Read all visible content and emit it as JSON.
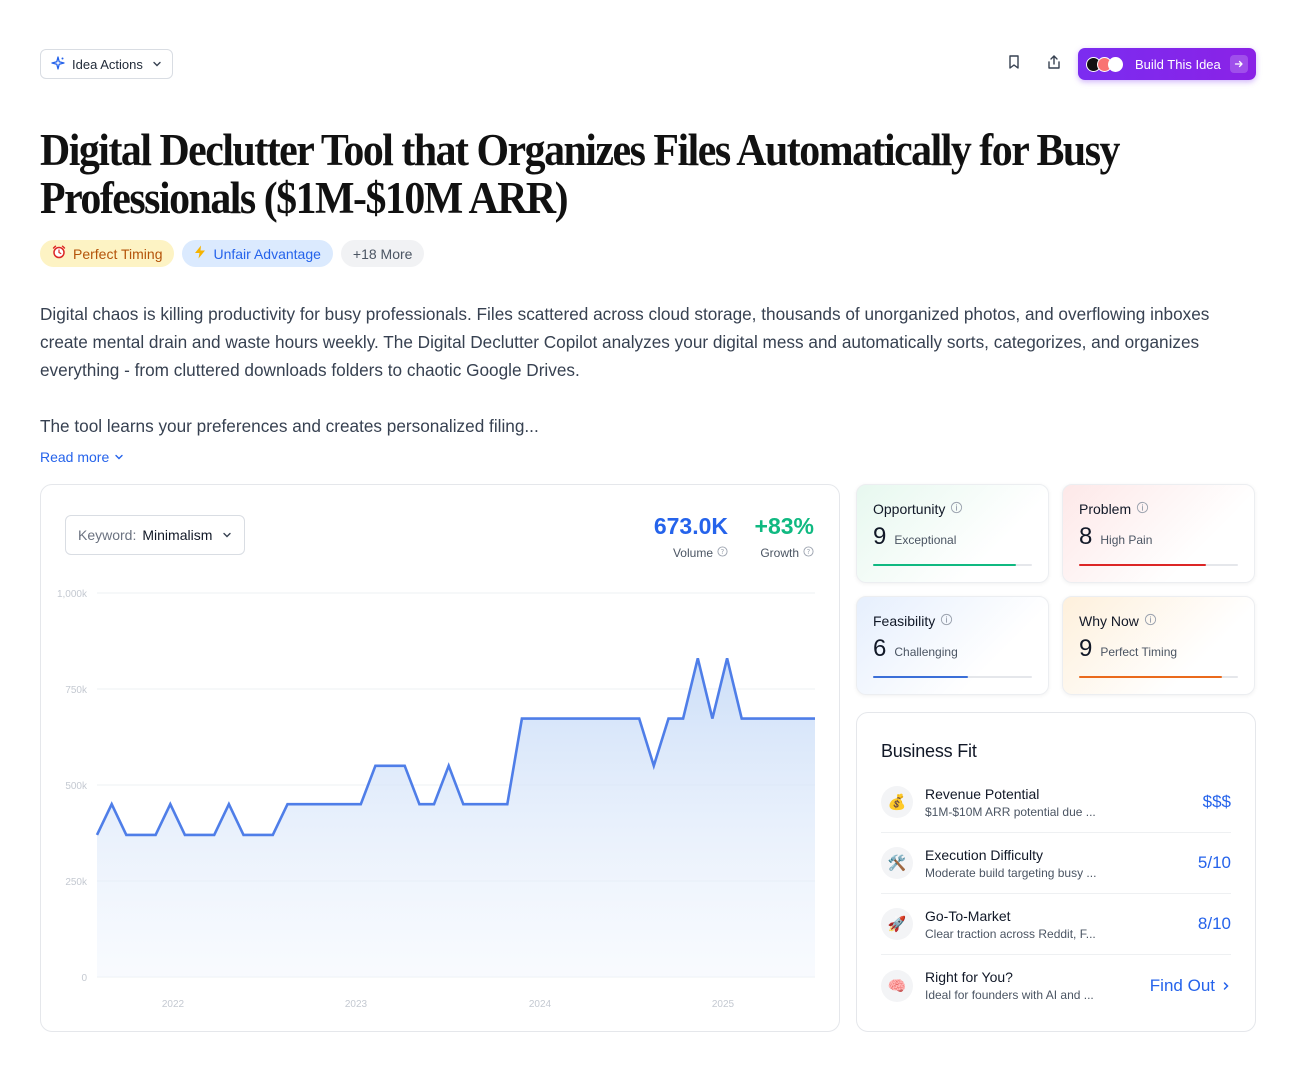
{
  "toolbar": {
    "idea_actions_label": "Idea Actions",
    "build_label": "Build This Idea"
  },
  "idea": {
    "title": "Digital Declutter Tool that Organizes Files Automatically for Busy Professionals ($1M-$10M ARR)",
    "tags": [
      {
        "label": "Perfect Timing",
        "icon": "alarm-clock-icon",
        "color": "#b45309"
      },
      {
        "label": "Unfair Advantage",
        "icon": "lightning-icon",
        "color": "#2563eb"
      },
      {
        "label": "+18 More"
      }
    ],
    "description": [
      "Digital chaos is killing productivity for busy professionals. Files scattered across cloud storage, thousands of unorganized photos, and overflowing inboxes create mental drain and waste hours weekly. The Digital Declutter Copilot analyzes your digital mess and automatically sorts, categorizes, and organizes everything - from cluttered downloads folders to chaotic Google Drives.",
      "The tool learns your preferences and creates personalized filing..."
    ],
    "read_more_label": "Read more"
  },
  "trend": {
    "keyword_label": "Keyword:",
    "keyword_value": "Minimalism",
    "volume": {
      "value": "673.0K",
      "label": "Volume",
      "color": "#2563eb"
    },
    "growth": {
      "value": "+83%",
      "label": "Growth",
      "color": "#10b981"
    }
  },
  "chart_data": {
    "type": "area",
    "title": "",
    "xlabel": "",
    "ylabel": "",
    "ylim": [
      0,
      1000000
    ],
    "ytick_labels": [
      "1,000k",
      "750k",
      "500k",
      "250k",
      "0"
    ],
    "xtick_labels": [
      "2022",
      "2023",
      "2024",
      "2025"
    ],
    "grid": true,
    "color": "#4f7ee8",
    "series": [
      {
        "values": [
          370000,
          450000,
          370000,
          370000,
          370000,
          450000,
          370000,
          370000,
          370000,
          450000,
          370000,
          370000,
          370000,
          450000,
          450000,
          450000,
          450000,
          450000,
          450000,
          550000,
          550000,
          550000,
          450000,
          450000,
          550000,
          450000,
          450000,
          450000,
          450000,
          673000,
          673000,
          673000,
          673000,
          673000,
          673000,
          673000,
          673000,
          673000,
          550000,
          673000,
          673000,
          830000,
          673000,
          830000,
          673000,
          673000,
          673000,
          673000,
          673000,
          673000
        ]
      }
    ]
  },
  "scores": [
    {
      "name": "Opportunity",
      "value": "9",
      "label": "Exceptional",
      "fraction": 0.9,
      "color": "#10b981"
    },
    {
      "name": "Problem",
      "value": "8",
      "label": "High Pain",
      "fraction": 0.8,
      "color": "#dc2626"
    },
    {
      "name": "Feasibility",
      "value": "6",
      "label": "Challenging",
      "fraction": 0.6,
      "color": "#3b6fd8"
    },
    {
      "name": "Why Now",
      "value": "9",
      "label": "Perfect Timing",
      "fraction": 0.9,
      "color": "#ea6a1c"
    }
  ],
  "business_fit": {
    "title": "Business Fit",
    "items": [
      {
        "title": "Revenue Potential",
        "desc": "$1M-$10M ARR potential due ...",
        "value": "$$$",
        "icon": "money-bag-icon"
      },
      {
        "title": "Execution Difficulty",
        "desc": "Moderate build targeting busy ...",
        "value": "5/10",
        "icon": "tools-icon"
      },
      {
        "title": "Go-To-Market",
        "desc": "Clear traction across Reddit, F...",
        "value": "8/10",
        "icon": "rocket-icon"
      },
      {
        "title": "Right for You?",
        "desc": "Ideal for founders with AI and ...",
        "value": "Find Out",
        "icon": "brain-icon"
      }
    ]
  }
}
